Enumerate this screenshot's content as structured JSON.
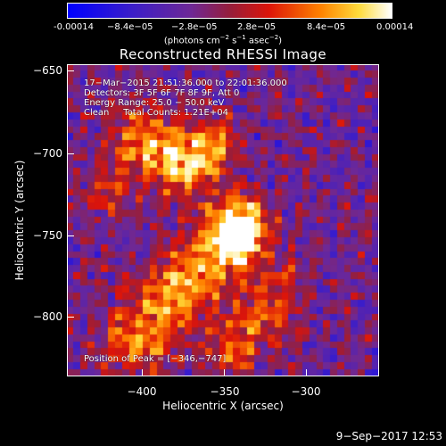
{
  "colorbar": {
    "ticks": [
      "-0.00014",
      "−8.4e−05",
      "−2.8e−05",
      "2.8e−05",
      "8.4e−05",
      "0.00014"
    ],
    "unit_prefix": "(photons cm",
    "unit_sup1": "−2",
    "unit_mid": " s",
    "unit_sup2": "−1",
    "unit_mid2": " asec",
    "unit_sup3": "−2",
    "unit_suffix": ")",
    "range": [
      -0.00014,
      0.00014
    ]
  },
  "annotations": {
    "line1": "17−Mar−2015 21:51:36.000 to 22:01:36.000",
    "line2": "Detectors: 3F 5F 6F 7F 8F 9F, Att 0",
    "line3": "Energy Range: 25.0 − 50.0 keV",
    "line4": "Clean     Total Counts: 1.21E+04",
    "peak": "Position of Peak = [−346,−747]"
  },
  "footer": {
    "timestamp": "9−Sep−2017 12:53"
  },
  "chart_data": {
    "type": "heatmap",
    "title": "Reconstructed RHESSI Image",
    "xlabel": "Heliocentric X (arcsec)",
    "ylabel": "Heliocentric Y (arcsec)",
    "xlim": [
      -445,
      -265
    ],
    "ylim": [
      -825,
      -645
    ],
    "xticks": [
      -400,
      -350,
      -300
    ],
    "yticks": [
      -650,
      -700,
      -750,
      -800
    ],
    "xtick_labels": [
      "−400",
      "−350",
      "−300"
    ],
    "ytick_labels": [
      "−650",
      "−700",
      "−750",
      "−800"
    ],
    "colormap": "RHESSI (blue-purple-red-yellow-white)",
    "colorbar_range": [
      -0.00014,
      0.00014
    ],
    "peak_position": [
      -346,
      -747
    ],
    "pixel_size_arcsec": 4,
    "grid": false
  }
}
